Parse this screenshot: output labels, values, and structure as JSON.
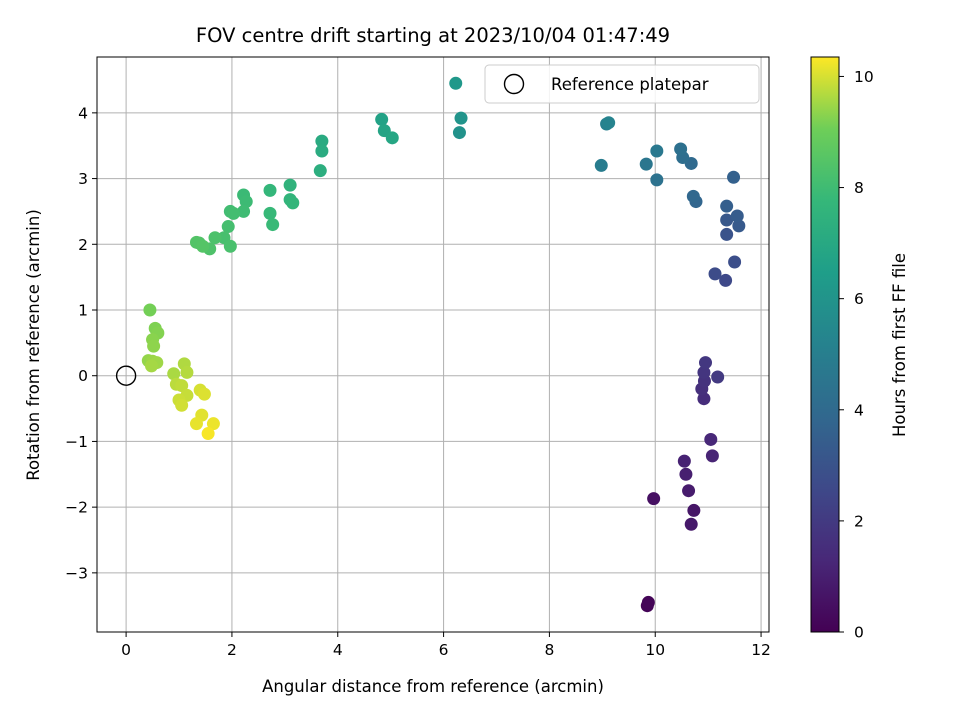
{
  "chart_data": {
    "type": "scatter",
    "title": "FOV centre drift starting at 2023/10/04 01:47:49",
    "xlabel": "Angular distance from reference (arcmin)",
    "ylabel": "Rotation from reference (arcmin)",
    "xlim": [
      -0.55,
      12.15
    ],
    "ylim": [
      -3.9,
      4.85
    ],
    "xticks": [
      0,
      2,
      4,
      6,
      8,
      10,
      12
    ],
    "yticks": [
      -3,
      -2,
      -1,
      0,
      1,
      2,
      3,
      4
    ],
    "grid": true,
    "legend": {
      "position": "top-right",
      "entries": [
        "Reference platepar"
      ]
    },
    "reference_point": {
      "x": 0,
      "y": 0
    },
    "colorbar": {
      "label": "Hours from first FF file",
      "range": [
        0,
        10.35
      ],
      "ticks": [
        0,
        2,
        4,
        6,
        8,
        10
      ],
      "colormap": "viridis"
    },
    "points": [
      {
        "x": 9.85,
        "y": -3.5,
        "t": 0.1
      },
      {
        "x": 9.87,
        "y": -3.45,
        "t": 0.12
      },
      {
        "x": 9.97,
        "y": -1.87,
        "t": 0.5
      },
      {
        "x": 10.73,
        "y": -2.05,
        "t": 0.7
      },
      {
        "x": 10.68,
        "y": -2.26,
        "t": 0.8
      },
      {
        "x": 10.63,
        "y": -1.75,
        "t": 0.9
      },
      {
        "x": 10.58,
        "y": -1.5,
        "t": 1.0
      },
      {
        "x": 10.55,
        "y": -1.3,
        "t": 1.1
      },
      {
        "x": 11.08,
        "y": -1.22,
        "t": 1.2
      },
      {
        "x": 11.05,
        "y": -0.97,
        "t": 1.3
      },
      {
        "x": 10.92,
        "y": -0.35,
        "t": 1.5
      },
      {
        "x": 10.88,
        "y": -0.2,
        "t": 1.6
      },
      {
        "x": 10.93,
        "y": -0.08,
        "t": 1.7
      },
      {
        "x": 10.92,
        "y": 0.05,
        "t": 1.8
      },
      {
        "x": 10.95,
        "y": 0.2,
        "t": 1.9
      },
      {
        "x": 11.18,
        "y": -0.02,
        "t": 2.0
      },
      {
        "x": 11.33,
        "y": 1.45,
        "t": 2.6
      },
      {
        "x": 11.13,
        "y": 1.55,
        "t": 2.7
      },
      {
        "x": 11.5,
        "y": 1.73,
        "t": 2.8
      },
      {
        "x": 11.35,
        "y": 2.15,
        "t": 3.0
      },
      {
        "x": 11.35,
        "y": 2.37,
        "t": 3.2
      },
      {
        "x": 11.58,
        "y": 2.28,
        "t": 3.3
      },
      {
        "x": 11.55,
        "y": 2.43,
        "t": 3.4
      },
      {
        "x": 11.35,
        "y": 2.58,
        "t": 3.5
      },
      {
        "x": 11.48,
        "y": 3.02,
        "t": 3.6
      },
      {
        "x": 10.77,
        "y": 2.65,
        "t": 3.8
      },
      {
        "x": 10.72,
        "y": 2.73,
        "t": 3.9
      },
      {
        "x": 10.68,
        "y": 3.23,
        "t": 4.0
      },
      {
        "x": 10.52,
        "y": 3.32,
        "t": 4.2
      },
      {
        "x": 10.48,
        "y": 3.45,
        "t": 4.3
      },
      {
        "x": 10.03,
        "y": 2.98,
        "t": 4.4
      },
      {
        "x": 9.83,
        "y": 3.22,
        "t": 4.6
      },
      {
        "x": 10.03,
        "y": 3.42,
        "t": 4.7
      },
      {
        "x": 8.98,
        "y": 3.2,
        "t": 4.9
      },
      {
        "x": 9.08,
        "y": 3.83,
        "t": 5.1
      },
      {
        "x": 9.12,
        "y": 3.85,
        "t": 5.2
      },
      {
        "x": 6.3,
        "y": 3.7,
        "t": 5.9
      },
      {
        "x": 6.33,
        "y": 3.92,
        "t": 6.0
      },
      {
        "x": 6.23,
        "y": 4.45,
        "t": 6.2
      },
      {
        "x": 4.83,
        "y": 3.9,
        "t": 6.7
      },
      {
        "x": 4.88,
        "y": 3.73,
        "t": 6.8
      },
      {
        "x": 5.03,
        "y": 3.62,
        "t": 6.9
      },
      {
        "x": 3.7,
        "y": 3.57,
        "t": 7.1
      },
      {
        "x": 3.7,
        "y": 3.42,
        "t": 7.15
      },
      {
        "x": 3.67,
        "y": 3.12,
        "t": 7.3
      },
      {
        "x": 3.1,
        "y": 2.9,
        "t": 7.5
      },
      {
        "x": 3.1,
        "y": 2.68,
        "t": 7.6
      },
      {
        "x": 3.15,
        "y": 2.63,
        "t": 7.65
      },
      {
        "x": 2.72,
        "y": 2.82,
        "t": 7.7
      },
      {
        "x": 2.72,
        "y": 2.47,
        "t": 7.8
      },
      {
        "x": 2.77,
        "y": 2.3,
        "t": 7.85
      },
      {
        "x": 2.22,
        "y": 2.75,
        "t": 7.9
      },
      {
        "x": 2.27,
        "y": 2.65,
        "t": 7.95
      },
      {
        "x": 2.22,
        "y": 2.5,
        "t": 8.0
      },
      {
        "x": 1.97,
        "y": 2.5,
        "t": 8.05
      },
      {
        "x": 2.03,
        "y": 2.47,
        "t": 8.1
      },
      {
        "x": 1.93,
        "y": 2.27,
        "t": 8.15
      },
      {
        "x": 1.85,
        "y": 2.1,
        "t": 8.2
      },
      {
        "x": 1.97,
        "y": 1.97,
        "t": 8.25
      },
      {
        "x": 1.68,
        "y": 2.1,
        "t": 8.3
      },
      {
        "x": 1.58,
        "y": 1.93,
        "t": 8.35
      },
      {
        "x": 1.38,
        "y": 2.02,
        "t": 8.4
      },
      {
        "x": 1.33,
        "y": 2.03,
        "t": 8.45
      },
      {
        "x": 1.45,
        "y": 1.97,
        "t": 8.5
      },
      {
        "x": 0.45,
        "y": 1.0,
        "t": 9.1
      },
      {
        "x": 0.55,
        "y": 0.72,
        "t": 9.2
      },
      {
        "x": 0.6,
        "y": 0.65,
        "t": 9.25
      },
      {
        "x": 0.5,
        "y": 0.55,
        "t": 9.3
      },
      {
        "x": 0.52,
        "y": 0.45,
        "t": 9.35
      },
      {
        "x": 0.42,
        "y": 0.23,
        "t": 9.4
      },
      {
        "x": 0.5,
        "y": 0.22,
        "t": 9.45
      },
      {
        "x": 0.58,
        "y": 0.2,
        "t": 9.5
      },
      {
        "x": 0.48,
        "y": 0.15,
        "t": 9.55
      },
      {
        "x": 0.9,
        "y": 0.03,
        "t": 9.6
      },
      {
        "x": 1.1,
        "y": 0.18,
        "t": 9.65
      },
      {
        "x": 1.15,
        "y": 0.05,
        "t": 9.7
      },
      {
        "x": 0.95,
        "y": -0.13,
        "t": 9.75
      },
      {
        "x": 1.05,
        "y": -0.15,
        "t": 9.8
      },
      {
        "x": 1.15,
        "y": -0.3,
        "t": 9.85
      },
      {
        "x": 1.0,
        "y": -0.37,
        "t": 9.9
      },
      {
        "x": 1.05,
        "y": -0.45,
        "t": 9.95
      },
      {
        "x": 1.4,
        "y": -0.22,
        "t": 10.0
      },
      {
        "x": 1.48,
        "y": -0.28,
        "t": 10.05
      },
      {
        "x": 1.43,
        "y": -0.6,
        "t": 10.1
      },
      {
        "x": 1.33,
        "y": -0.73,
        "t": 10.15
      },
      {
        "x": 1.65,
        "y": -0.73,
        "t": 10.2
      },
      {
        "x": 1.55,
        "y": -0.88,
        "t": 10.3
      }
    ]
  }
}
